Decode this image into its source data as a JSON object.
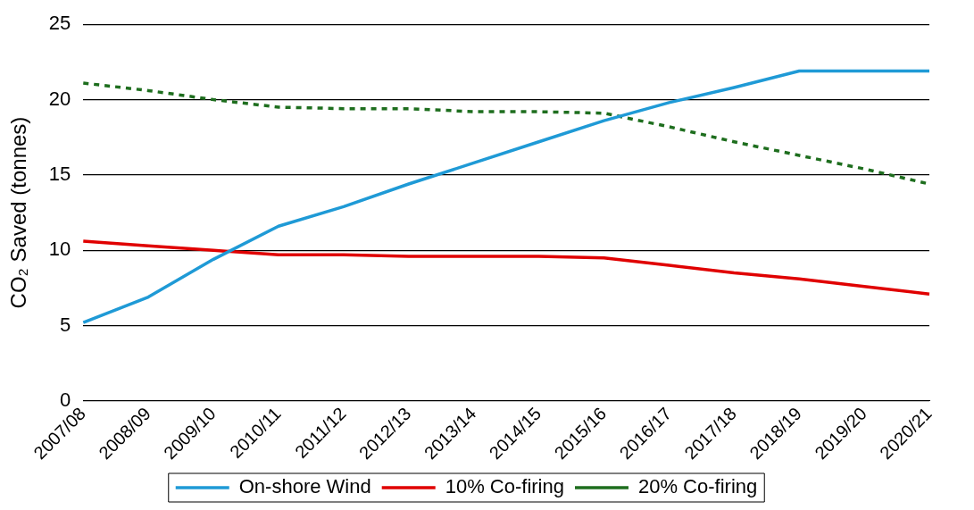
{
  "chart_data": {
    "type": "line",
    "ylabel": "CO₂ Saved (tonnes)",
    "categories": [
      "2007/08",
      "2008/09",
      "2009/10",
      "2010/11",
      "2011/12",
      "2012/13",
      "2013/14",
      "2014/15",
      "2015/16",
      "2016/17",
      "2017/18",
      "2018/19",
      "2019/20",
      "2020/21"
    ],
    "series": [
      {
        "name": "On-shore Wind",
        "color": "#1f9ad6",
        "values": [
          5.2,
          6.9,
          9.4,
          11.6,
          12.9,
          14.4,
          15.8,
          17.2,
          18.6,
          19.8,
          20.8,
          21.9,
          21.9,
          21.9
        ]
      },
      {
        "name": "10% Co-firing",
        "color": "#e00000",
        "values": [
          10.6,
          10.3,
          10.0,
          9.7,
          9.7,
          9.6,
          9.6,
          9.6,
          9.5,
          9.0,
          8.5,
          8.1,
          7.6,
          7.1
        ]
      },
      {
        "name": "20% Co-firing",
        "color": "#1e6e1e",
        "line_style": "dashed",
        "values": [
          21.1,
          20.6,
          20.0,
          19.5,
          19.4,
          19.4,
          19.2,
          19.2,
          19.1,
          18.2,
          17.2,
          16.3,
          15.4,
          14.4
        ]
      }
    ],
    "ylim": [
      0,
      25
    ],
    "yticks": [
      0,
      5,
      10,
      15,
      20,
      25
    ],
    "grid": "y",
    "legend": "bottom",
    "marker": "none"
  }
}
